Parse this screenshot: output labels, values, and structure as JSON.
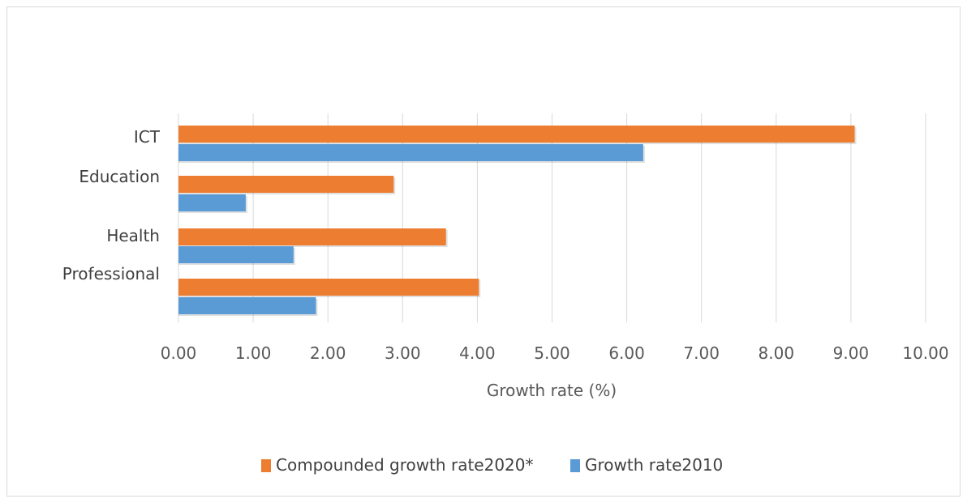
{
  "chart_data": {
    "type": "bar",
    "orientation": "horizontal",
    "categories": [
      "ICT",
      "Education",
      "Health",
      "Professional"
    ],
    "series": [
      {
        "name": "Compounded growth rate2020*",
        "color": "#ED7D31",
        "values": [
          9.05,
          2.88,
          3.58,
          4.02
        ]
      },
      {
        "name": "Growth rate2010",
        "color": "#5B9BD5",
        "values": [
          6.22,
          0.9,
          1.54,
          1.84
        ]
      }
    ],
    "xlabel": "Growth rate (%)",
    "xlim": [
      0,
      10
    ],
    "xticks": [
      "0.00",
      "1.00",
      "2.00",
      "3.00",
      "4.00",
      "5.00",
      "6.00",
      "7.00",
      "8.00",
      "9.00",
      "10.00"
    ],
    "grid": true,
    "legend_position": "bottom"
  }
}
